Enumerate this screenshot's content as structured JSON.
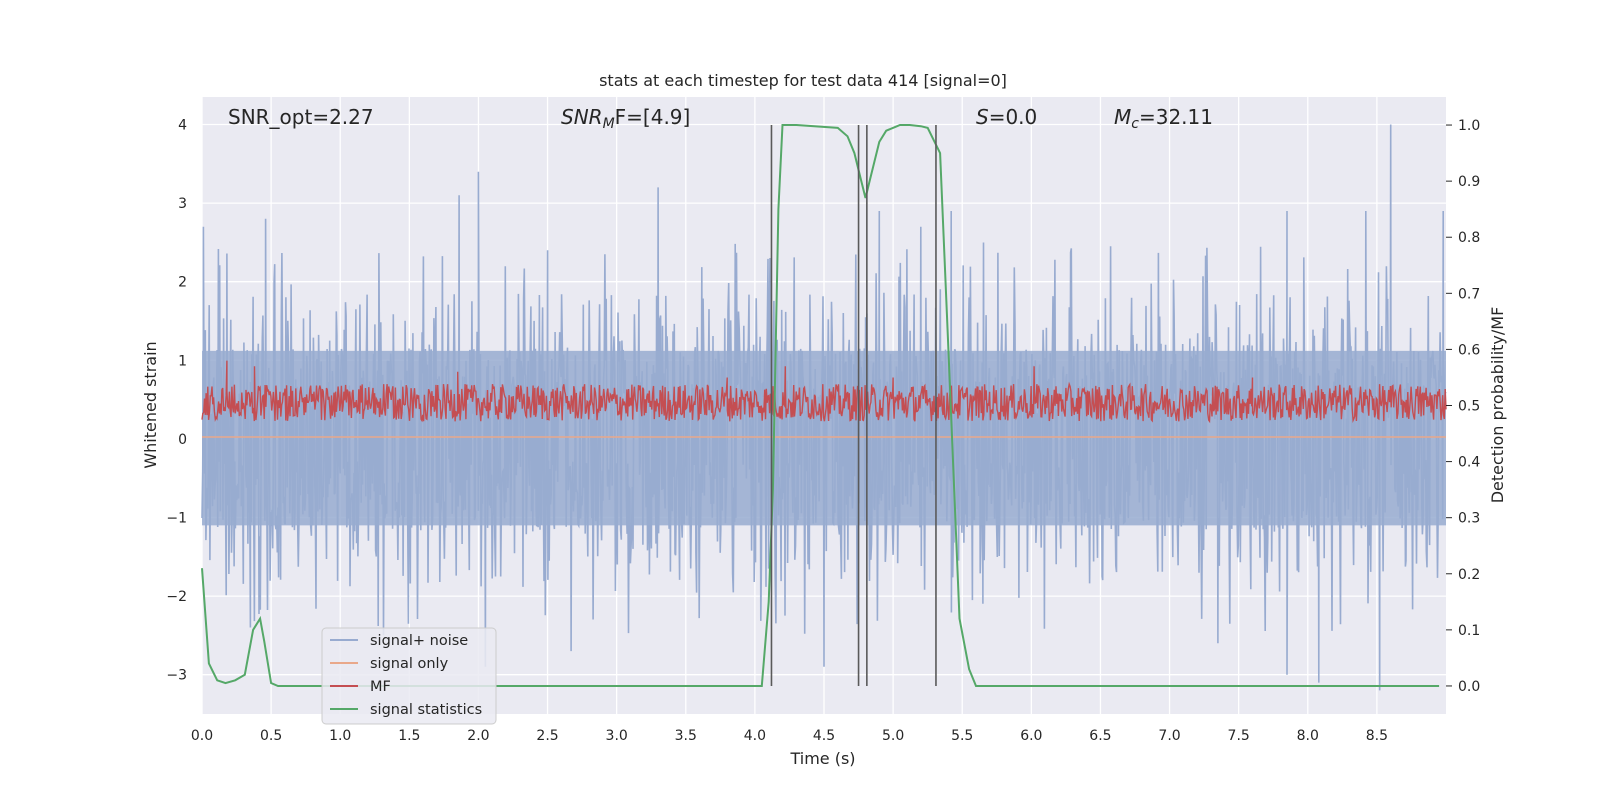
{
  "chart_data": {
    "type": "line",
    "title": "stats at each timestep for test data 414 [signal=0]",
    "xlabel": "Time (s)",
    "ylabel": "Whitened strain",
    "y2label": "Detection probability/MF",
    "xlim": [
      0.0,
      9.0
    ],
    "ylim": [
      -3.5,
      4.35
    ],
    "y2lim": [
      -0.05,
      1.05
    ],
    "grid": true,
    "legend_position": "lower-left",
    "x_ticks": [
      "0.0",
      "0.5",
      "1.0",
      "1.5",
      "2.0",
      "2.5",
      "3.0",
      "3.5",
      "4.0",
      "4.5",
      "5.0",
      "5.5",
      "6.0",
      "6.5",
      "7.0",
      "7.5",
      "8.0",
      "8.5"
    ],
    "y_ticks": [
      "4",
      "3",
      "2",
      "1",
      "0",
      "−1",
      "−2",
      "−3"
    ],
    "y2_ticks": [
      "1.0",
      "0.9",
      "0.8",
      "0.7",
      "0.6",
      "0.5",
      "0.4",
      "0.3",
      "0.2",
      "0.1",
      "0.0"
    ],
    "annotations": {
      "snr_opt": "SNR_opt=2.27",
      "snr_mf_main": "SNR",
      "snr_mf_sub": "M",
      "snr_mf_rest": "F=[4.9]",
      "s_italic": "S",
      "s_rest": "=0.0",
      "mc_main": "M",
      "mc_sub": "c",
      "mc_rest": "=32.11"
    },
    "series": [
      {
        "name": "signal+ noise",
        "color": "#98abd0",
        "style": "dense noise",
        "envelope_typical": [
          -1.7,
          1.9
        ],
        "peak_spikes": [
          [
            0.01,
            2.7
          ],
          [
            0.46,
            2.8
          ],
          [
            1.86,
            3.1
          ],
          [
            2.0,
            3.4
          ],
          [
            2.5,
            2.4
          ],
          [
            3.3,
            3.2
          ],
          [
            4.9,
            2.9
          ],
          [
            5.2,
            2.7
          ],
          [
            5.42,
            2.9
          ],
          [
            7.85,
            2.9
          ],
          [
            8.42,
            2.9
          ],
          [
            8.6,
            4.0
          ],
          [
            8.98,
            2.9
          ]
        ],
        "trough_spikes": [
          [
            0.35,
            -2.4
          ],
          [
            2.05,
            -2.9
          ],
          [
            2.67,
            -2.7
          ],
          [
            4.5,
            -2.9
          ],
          [
            7.35,
            -2.6
          ],
          [
            7.85,
            -3.0
          ],
          [
            8.08,
            -3.1
          ],
          [
            8.52,
            -3.2
          ]
        ]
      },
      {
        "name": "signal only",
        "color": "#e9a88a",
        "values": "flat at 0"
      },
      {
        "name": "MF",
        "color": "#c44e52",
        "style": "noise on right axis",
        "center_y2": 0.505,
        "spread_y2": 0.035,
        "spikes": [
          [
            0.18,
            0.58
          ],
          [
            0.38,
            0.57
          ],
          [
            1.85,
            0.56
          ],
          [
            4.22,
            0.57
          ],
          [
            6.02,
            0.57
          ],
          [
            7.6,
            0.55
          ],
          [
            3.8,
            0.55
          ],
          [
            5.0,
            0.55
          ]
        ]
      },
      {
        "name": "signal statistics",
        "color": "#55a868",
        "x": [
          0.0,
          0.05,
          0.11,
          0.17,
          0.24,
          0.31,
          0.37,
          0.42,
          0.45,
          0.5,
          0.55,
          1.0,
          2.0,
          3.0,
          3.9,
          4.05,
          4.1,
          4.13,
          4.17,
          4.2,
          4.3,
          4.6,
          4.67,
          4.72,
          4.77,
          4.8,
          4.83,
          4.9,
          4.95,
          5.05,
          5.12,
          5.2,
          5.25,
          5.3,
          5.34,
          5.4,
          5.48,
          5.55,
          5.6,
          6.0,
          7.0,
          8.0,
          8.95
        ],
        "values": [
          0.21,
          0.04,
          0.01,
          0.005,
          0.01,
          0.02,
          0.1,
          0.12,
          0.08,
          0.005,
          0.0,
          0.0,
          0.0,
          0.0,
          0.0,
          0.0,
          0.15,
          0.35,
          0.85,
          1.0,
          1.0,
          0.995,
          0.98,
          0.95,
          0.9,
          0.87,
          0.9,
          0.97,
          0.99,
          1.0,
          1.0,
          0.998,
          0.995,
          0.97,
          0.95,
          0.6,
          0.12,
          0.03,
          0.0,
          0.0,
          0.0,
          0.0,
          0.0
        ]
      }
    ],
    "vertical_markers": {
      "color": "#5a5a5a",
      "x": [
        4.12,
        4.75,
        4.81,
        5.31
      ],
      "y2_range": [
        0.0,
        1.0
      ]
    }
  }
}
